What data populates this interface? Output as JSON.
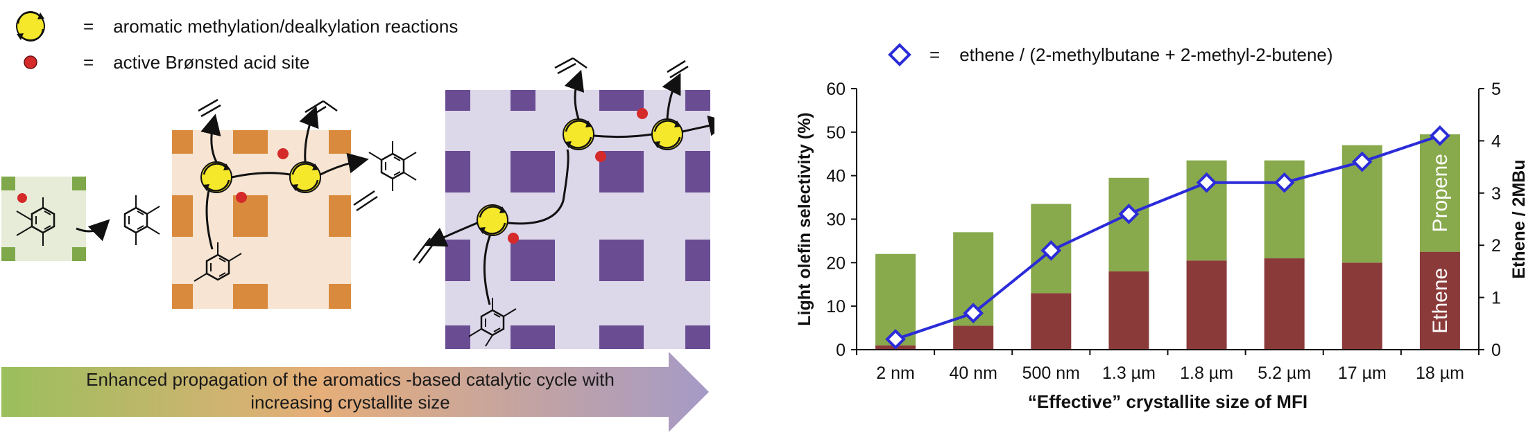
{
  "legend": {
    "methylation_eq": "=",
    "methylation_text": "aromatic methylation/dealkylation reactions",
    "acid_eq": "=",
    "acid_text": "active Brønsted acid site"
  },
  "arrow": {
    "text_line1": "Enhanced propagation of the aromatics -based catalytic cycle with",
    "text_line2": "increasing crystallite size",
    "gradient_colors": [
      "#8fb84a",
      "#e3a56a",
      "#9b8fc0"
    ]
  },
  "crystal_colors": {
    "small_bg": "#e6ecd8",
    "small_block": "#7fa84a",
    "medium_bg": "#f7e4d2",
    "medium_block": "#d98a3c",
    "large_bg": "#ddd7ea",
    "large_block": "#6a4c93",
    "cycle_fill": "#f5e72a",
    "acid_site": "#d42a2a"
  },
  "chart_legend": {
    "eq": "=",
    "text": "ethene / (2-methylbutane + 2-methyl-2-butene)"
  },
  "chart_data": {
    "type": "bar",
    "categories": [
      "2 nm",
      "40 nm",
      "500 nm",
      "1.3 µm",
      "1.8 µm",
      "5.2 µm",
      "17 µm",
      "18 µm"
    ],
    "series": [
      {
        "name": "Ethene",
        "values": [
          1,
          5.5,
          13,
          18,
          20.5,
          21,
          20,
          22.5
        ],
        "color": "#8b3a3a"
      },
      {
        "name": "Propene",
        "values": [
          21,
          21.5,
          20.5,
          21.5,
          23,
          22.5,
          27,
          27
        ],
        "color": "#88a94c"
      }
    ],
    "line_series": {
      "values": [
        0.2,
        0.7,
        1.9,
        2.6,
        3.2,
        3.2,
        3.6,
        4.1
      ],
      "color": "#2b2bd9"
    },
    "xlabel": "“Effective” crystallite size of MFI",
    "ylabel": "Light olefin selectivity (%)",
    "y2label": "Ethene / 2MBu",
    "ylim": [
      0,
      60
    ],
    "y2lim": [
      0,
      5
    ],
    "yticks": [
      "0",
      "10",
      "20",
      "30",
      "40",
      "50",
      "60"
    ],
    "y2ticks": [
      "0",
      "1",
      "2",
      "3",
      "4",
      "5"
    ],
    "stacked": true,
    "grid": false
  }
}
